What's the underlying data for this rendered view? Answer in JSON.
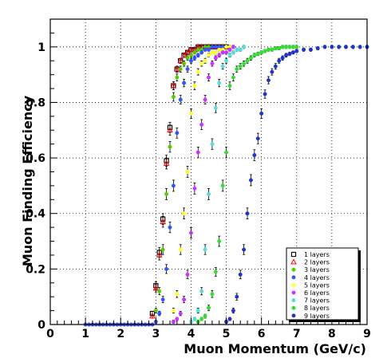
{
  "chart_data": {
    "type": "scatter",
    "xlabel": "Muon Momentum (GeV/c)",
    "ylabel": "Muon Finding Efficiency",
    "xlim": [
      0,
      9
    ],
    "ylim": [
      0,
      1.1
    ],
    "xticks": [
      "0",
      "1",
      "2",
      "3",
      "4",
      "5",
      "6",
      "7",
      "8",
      "9"
    ],
    "yticks": [
      "0",
      "0.2",
      "0.4",
      "0.6",
      "0.8",
      "1"
    ],
    "grid": true,
    "legend_position": "bottom-right",
    "series": [
      {
        "name": "1 layers",
        "color": "#000000",
        "marker": "open-square",
        "x": [
          2.9,
          3.0,
          3.1,
          3.2,
          3.3,
          3.4,
          3.5,
          3.6,
          3.7,
          3.8,
          3.9,
          4.0,
          4.1,
          4.2,
          4.3,
          4.4,
          4.5,
          4.6,
          4.7,
          4.8,
          4.9,
          5.0
        ],
        "y": [
          0.04,
          0.14,
          0.26,
          0.38,
          0.59,
          0.71,
          0.86,
          0.92,
          0.95,
          0.97,
          0.98,
          0.99,
          0.99,
          1.0,
          1.0,
          1.0,
          1.0,
          1.0,
          1.0,
          1.0,
          1.0,
          1.0
        ]
      },
      {
        "name": "2 layers",
        "color": "#ff0000",
        "marker": "open-triangle",
        "x": [
          2.9,
          3.0,
          3.1,
          3.2,
          3.3,
          3.4,
          3.5,
          3.6,
          3.7,
          3.8,
          3.9,
          4.0,
          4.1,
          4.2,
          4.3,
          4.4,
          4.5,
          4.6,
          4.7,
          4.8,
          4.9,
          5.0
        ],
        "y": [
          0.03,
          0.13,
          0.25,
          0.37,
          0.58,
          0.7,
          0.86,
          0.92,
          0.95,
          0.97,
          0.98,
          0.99,
          0.99,
          1.0,
          1.0,
          1.0,
          1.0,
          1.0,
          1.0,
          1.0,
          1.0,
          1.0
        ]
      },
      {
        "name": "3 layers",
        "color": "#55cc00",
        "marker": "circle",
        "x": [
          3.0,
          3.1,
          3.2,
          3.3,
          3.4,
          3.5,
          3.6,
          3.7,
          3.8,
          3.9,
          4.0,
          4.1,
          4.2,
          4.3,
          4.4,
          4.5,
          4.6,
          4.7,
          4.8,
          4.9,
          5.0
        ],
        "y": [
          0.05,
          0.12,
          0.27,
          0.47,
          0.64,
          0.82,
          0.89,
          0.92,
          0.94,
          0.96,
          0.97,
          0.98,
          0.99,
          0.99,
          1.0,
          1.0,
          1.0,
          1.0,
          1.0,
          1.0,
          1.0
        ]
      },
      {
        "name": "4 layers",
        "color": "#3355ff",
        "marker": "circle",
        "x": [
          3.0,
          3.1,
          3.2,
          3.3,
          3.4,
          3.5,
          3.6,
          3.7,
          3.8,
          3.9,
          4.0,
          4.1,
          4.2,
          4.3,
          4.4,
          4.5,
          4.6,
          4.7,
          4.8,
          4.9,
          5.0,
          5.1
        ],
        "y": [
          0.01,
          0.04,
          0.09,
          0.2,
          0.35,
          0.5,
          0.69,
          0.81,
          0.87,
          0.92,
          0.95,
          0.96,
          0.97,
          0.98,
          0.99,
          0.99,
          1.0,
          1.0,
          1.0,
          1.0,
          1.0,
          1.0
        ]
      },
      {
        "name": "5 layers",
        "color": "#ffff33",
        "marker": "circle",
        "x": [
          3.5,
          3.6,
          3.7,
          3.8,
          3.9,
          4.0,
          4.1,
          4.2,
          4.3,
          4.4,
          4.5,
          4.6,
          4.7,
          4.8,
          4.9,
          5.0,
          5.1,
          5.2
        ],
        "y": [
          0.05,
          0.11,
          0.27,
          0.4,
          0.55,
          0.76,
          0.86,
          0.91,
          0.94,
          0.95,
          0.97,
          0.98,
          0.98,
          0.99,
          0.99,
          1.0,
          1.0,
          1.0
        ]
      },
      {
        "name": "6 layers",
        "color": "#cc33ff",
        "marker": "circle",
        "x": [
          3.5,
          3.6,
          3.7,
          3.8,
          3.9,
          4.0,
          4.1,
          4.2,
          4.3,
          4.4,
          4.5,
          4.6,
          4.7,
          4.8,
          4.9,
          5.0,
          5.1,
          5.2
        ],
        "y": [
          0.01,
          0.02,
          0.04,
          0.09,
          0.18,
          0.33,
          0.49,
          0.62,
          0.72,
          0.81,
          0.89,
          0.94,
          0.96,
          0.97,
          0.98,
          0.98,
          0.99,
          1.0
        ]
      },
      {
        "name": "7 layers",
        "color": "#55dddd",
        "marker": "circle",
        "x": [
          4.0,
          4.1,
          4.2,
          4.3,
          4.4,
          4.5,
          4.6,
          4.7,
          4.8,
          4.9,
          5.0,
          5.1,
          5.2,
          5.3,
          5.4,
          5.5
        ],
        "y": [
          0.01,
          0.02,
          0.05,
          0.12,
          0.27,
          0.47,
          0.65,
          0.78,
          0.87,
          0.93,
          0.95,
          0.97,
          0.98,
          0.99,
          0.99,
          1.0
        ]
      },
      {
        "name": "8 layers",
        "color": "#33dd33",
        "marker": "circle",
        "x": [
          4.2,
          4.3,
          4.4,
          4.5,
          4.6,
          4.7,
          4.8,
          4.9,
          5.0,
          5.1,
          5.2,
          5.3,
          5.4,
          5.5,
          5.6,
          5.7,
          5.8,
          5.9,
          6.0,
          6.1,
          6.2,
          6.3,
          6.4,
          6.5,
          6.6,
          6.7,
          6.8,
          6.9,
          7.0
        ],
        "y": [
          0.01,
          0.02,
          0.03,
          0.06,
          0.11,
          0.19,
          0.3,
          0.5,
          0.62,
          0.86,
          0.89,
          0.92,
          0.93,
          0.94,
          0.95,
          0.96,
          0.97,
          0.975,
          0.98,
          0.985,
          0.99,
          0.99,
          0.995,
          0.995,
          1.0,
          1.0,
          1.0,
          1.0,
          1.0
        ]
      },
      {
        "name": "9 layers",
        "color": "#2233cc",
        "marker": "circle",
        "x": [
          5.0,
          5.1,
          5.2,
          5.3,
          5.4,
          5.5,
          5.6,
          5.7,
          5.8,
          5.9,
          6.0,
          6.1,
          6.2,
          6.3,
          6.4,
          6.5,
          6.6,
          6.7,
          6.8,
          6.9,
          7.0,
          7.2,
          7.4,
          7.6,
          7.8,
          8.0,
          8.2,
          8.4,
          8.6,
          8.8,
          9.0
        ],
        "y": [
          0.01,
          0.02,
          0.05,
          0.1,
          0.18,
          0.27,
          0.4,
          0.52,
          0.61,
          0.67,
          0.76,
          0.83,
          0.88,
          0.91,
          0.93,
          0.95,
          0.96,
          0.97,
          0.975,
          0.98,
          0.985,
          0.99,
          0.99,
          0.995,
          1.0,
          1.0,
          1.0,
          1.0,
          1.0,
          1.0,
          1.0
        ]
      }
    ]
  }
}
